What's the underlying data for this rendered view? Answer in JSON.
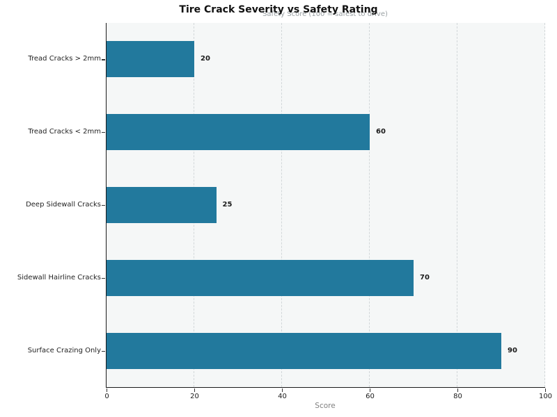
{
  "chart": {
    "title": "Tire Crack Severity vs Safety Rating",
    "subtitle": "Safety Score (100 = safest to drive)",
    "xlabel": "Score"
  },
  "chart_data": {
    "type": "bar",
    "orientation": "horizontal",
    "title": "Tire Crack Severity vs Safety Rating",
    "subtitle": "Safety Score (100 = safest to drive)",
    "xlabel": "Score",
    "ylabel": "",
    "categories": [
      "Tread Cracks > 2mm",
      "Tread Cracks < 2mm",
      "Deep Sidewall Cracks",
      "Sidewall Hairline Cracks",
      "Surface Crazing Only"
    ],
    "values": [
      20,
      60,
      25,
      70,
      90
    ],
    "value_labels": [
      "20",
      "60",
      "25",
      "70",
      "90"
    ],
    "xlim": [
      0,
      100
    ],
    "xticks": [
      0,
      20,
      40,
      60,
      80,
      100
    ],
    "grid": "vertical-dashed",
    "legend": "none",
    "colors": {
      "bar": "#22799D",
      "plot_background": "#f5f7f7",
      "figure_background": "#ffffff",
      "gridline": "#d2d7d9",
      "value_label": "#1a1a1a",
      "subtitle": "#9aa0a3"
    }
  }
}
